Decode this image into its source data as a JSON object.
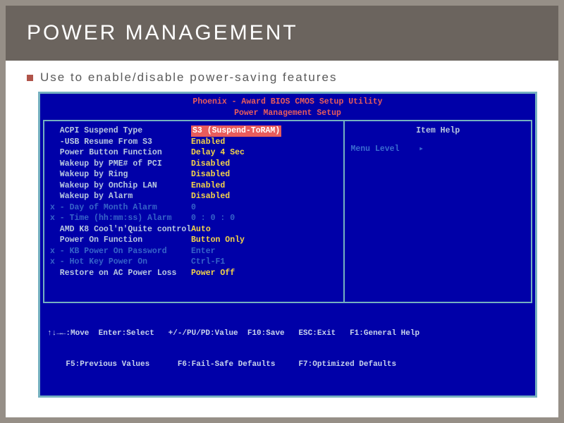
{
  "colors": {
    "page_bg": "#968f87",
    "slide_bg": "#ffffff",
    "titlebar_bg": "#6b645e",
    "title_text": "#ffffff",
    "bullet": "#b0544a",
    "subtitle": "#5a5a5a",
    "bios_bg": "#0000a8",
    "bios_border": "#75b0c0",
    "bios_header": "#e85c5c",
    "label_text": "#b8c8e0",
    "value_text": "#f5d548",
    "dim_text": "#3664c8",
    "sel_bg": "#e85c5c",
    "sel_fg": "#ffffff",
    "footer_text": "#c8d4ec"
  },
  "title": "POWER MANAGEMENT",
  "subtitle": "Use to enable/disable power-saving features",
  "bios": {
    "header_line1": "Phoenix - Award BIOS CMOS Setup Utility",
    "header_line2": "Power Management Setup",
    "help_title": "Item Help",
    "help_menu": "Menu Level    ▸",
    "options": [
      {
        "prefix": "  ",
        "label": "ACPI Suspend Type",
        "value": "S3 (Suspend-ToRAM)",
        "dim": false,
        "selected": true
      },
      {
        "prefix": "  ",
        "label": "-USB Resume From S3",
        "value": "Enabled",
        "dim": false,
        "selected": false
      },
      {
        "prefix": "  ",
        "label": "Power Button Function",
        "value": "Delay 4 Sec",
        "dim": false,
        "selected": false
      },
      {
        "prefix": "  ",
        "label": "Wakeup by PME# of PCI",
        "value": "Disabled",
        "dim": false,
        "selected": false
      },
      {
        "prefix": "  ",
        "label": "Wakeup by Ring",
        "value": "Disabled",
        "dim": false,
        "selected": false
      },
      {
        "prefix": "  ",
        "label": "Wakeup by OnChip LAN",
        "value": "Enabled",
        "dim": false,
        "selected": false
      },
      {
        "prefix": "  ",
        "label": "Wakeup by Alarm",
        "value": "Disabled",
        "dim": false,
        "selected": false
      },
      {
        "prefix": "x ",
        "label": "- Day of Month Alarm",
        "value": "0",
        "dim": true,
        "selected": false
      },
      {
        "prefix": "x ",
        "label": "- Time (hh:mm:ss) Alarm",
        "value": "0 : 0 : 0",
        "dim": true,
        "selected": false
      },
      {
        "prefix": "  ",
        "label": "AMD K8 Cool'n'Quite control",
        "value": "Auto",
        "dim": false,
        "selected": false
      },
      {
        "prefix": "  ",
        "label": "Power On Function",
        "value": "Button Only",
        "dim": false,
        "selected": false
      },
      {
        "prefix": "x ",
        "label": "- KB Power On Password",
        "value": "Enter",
        "dim": true,
        "selected": false
      },
      {
        "prefix": "x ",
        "label": "- Hot Key Power On",
        "value": "Ctrl-F1",
        "dim": true,
        "selected": false
      },
      {
        "prefix": "  ",
        "label": "Restore on AC Power Loss",
        "value": "Power Off",
        "dim": false,
        "selected": false
      }
    ],
    "footer_line1": "↑↓→←:Move  Enter:Select   +/-/PU/PD:Value  F10:Save   ESC:Exit   F1:General Help",
    "footer_line2": "    F5:Previous Values      F6:Fail-Safe Defaults     F7:Optimized Defaults"
  }
}
